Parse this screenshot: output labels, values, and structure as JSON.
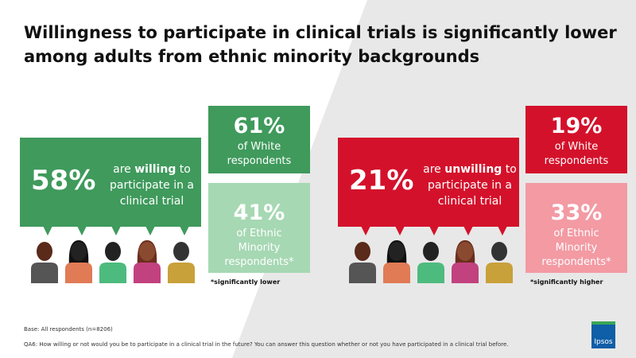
{
  "header": {
    "title_lines": [
      "Willingness to participate in clinical trials is significantly lower",
      "among adults from ethnic minority backgrounds"
    ]
  },
  "left": {
    "main_value": "58%",
    "text_pre": "are ",
    "text_em": "willing",
    "text_post": " to participate in a clinical trial",
    "box1": {
      "value": "61%",
      "label": "of White respondents"
    },
    "box2": {
      "value": "41%",
      "label": "of Ethnic Minority respondents*"
    },
    "note": "*significantly lower"
  },
  "right": {
    "main_value": "21%",
    "text_pre": "are ",
    "text_em": "unwilling",
    "text_post": " to participate in a clinical trial",
    "box1": {
      "value": "19%",
      "label": "of White respondents"
    },
    "box2": {
      "value": "33%",
      "label": "of Ethnic Minority respondents*"
    },
    "note": "*significantly higher"
  },
  "footer": {
    "base": "Base: All respondents (n=8206)",
    "question": "QA6: How willing or not would you be to participate in a clinical trial in the future? You can answer this question whether or not you have participated in a clinical trial before.",
    "logo": "Ipsos"
  }
}
